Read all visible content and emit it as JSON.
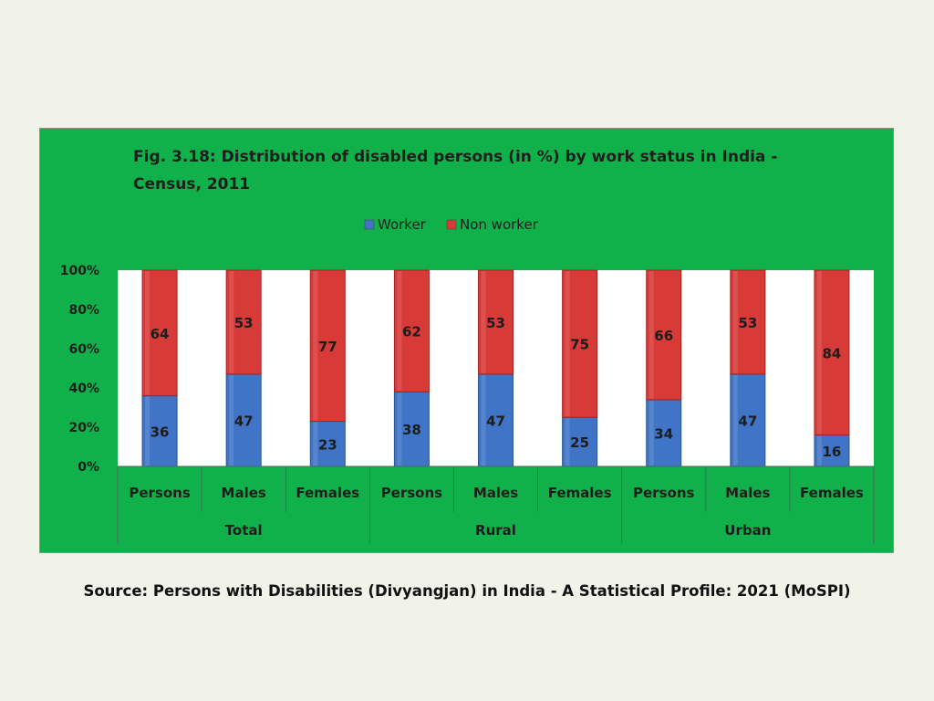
{
  "chart_data": {
    "type": "bar",
    "stacked": true,
    "percent": true,
    "title": "Fig. 3.18: Distribution of disabled persons (in %) by work status in India - Census, 2011",
    "categories": [
      "Persons",
      "Males",
      "Females",
      "Persons",
      "Males",
      "Females",
      "Persons",
      "Males",
      "Females"
    ],
    "groups": [
      {
        "label": "Total",
        "categories": [
          "Persons",
          "Males",
          "Females"
        ]
      },
      {
        "label": "Rural",
        "categories": [
          "Persons",
          "Males",
          "Females"
        ]
      },
      {
        "label": "Urban",
        "categories": [
          "Persons",
          "Males",
          "Females"
        ]
      }
    ],
    "series": [
      {
        "name": "Worker",
        "color": "#3f74c6",
        "values": [
          36,
          47,
          23,
          38,
          47,
          25,
          34,
          47,
          16
        ]
      },
      {
        "name": "Non worker",
        "color": "#d83a37",
        "values": [
          64,
          53,
          77,
          62,
          53,
          75,
          66,
          53,
          84
        ]
      }
    ],
    "y_ticks": [
      "0%",
      "20%",
      "40%",
      "60%",
      "80%",
      "100%"
    ],
    "ylim": [
      0,
      100
    ],
    "xlabel": "",
    "ylabel": "",
    "legend_position": "top"
  },
  "source_note": "Source: Persons with Disabilities (Divyangjan) in India - A Statistical Profile: 2021 (MoSPI)"
}
